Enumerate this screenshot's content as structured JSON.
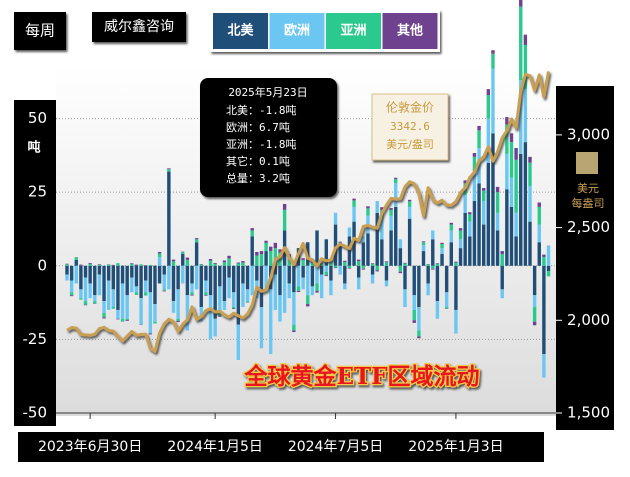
{
  "chart_data": {
    "type": "bar",
    "title": "全球黄金ETF区域流动",
    "period": "每周",
    "source": "威尔鑫咨询",
    "y_label": "吨",
    "y2_label": [
      "美元",
      "每盎司"
    ],
    "tooltip": {
      "title": "2025年5月23日",
      "lines": [
        "北美：-1.8吨",
        "欧洲：6.7吨",
        "亚洲：-1.8吨",
        "其它：0.1吨",
        "总量：3.2吨"
      ]
    },
    "price_box": {
      "title": "伦敦金价",
      "value": 3342.6,
      "unit": "美元/盎司"
    },
    "ylim": [
      -50,
      66.5
    ],
    "yticks": [
      -50,
      -25,
      0,
      25,
      50
    ],
    "y2lim": [
      1500,
      3350
    ],
    "y2ticks": [
      {
        "value": 1500,
        "label": "1,500"
      },
      {
        "value": 2000,
        "label": "2,000"
      },
      {
        "value": 2500,
        "label": "2,500"
      },
      {
        "value": 3000,
        "label": "3,000"
      }
    ],
    "grid": true,
    "categories": [
      null,
      null,
      null,
      null,
      null,
      "2023年6月30日",
      null,
      null,
      null,
      null,
      null,
      null,
      null,
      null,
      null,
      null,
      null,
      null,
      null,
      null,
      null,
      null,
      null,
      null,
      null,
      null,
      null,
      null,
      null,
      null,
      null,
      null,
      "2024年1月5日",
      null,
      null,
      null,
      null,
      null,
      null,
      null,
      null,
      null,
      null,
      null,
      null,
      null,
      null,
      null,
      null,
      null,
      null,
      null,
      null,
      null,
      null,
      null,
      null,
      null,
      "2024年7月5日",
      null,
      null,
      null,
      null,
      null,
      null,
      null,
      null,
      null,
      null,
      null,
      null,
      null,
      null,
      null,
      null,
      null,
      null,
      null,
      null,
      null,
      null,
      null,
      null,
      null,
      "2025年1月3日",
      null,
      null,
      null,
      null,
      null,
      null,
      null,
      null,
      null,
      null,
      null,
      null,
      null,
      null,
      null,
      null,
      null,
      null,
      null,
      null
    ],
    "series": [
      {
        "name": "北美",
        "color": "#1f4e79",
        "values": [
          -3,
          -5,
          2,
          -8,
          -4,
          -6,
          -10,
          -3,
          -12,
          -5,
          -8,
          -15,
          -6,
          -10,
          -4,
          -7,
          -11,
          -5,
          -9,
          -13,
          -6,
          -3,
          32,
          -12,
          -8,
          4,
          -10,
          -6,
          8,
          -14,
          -5,
          -10,
          -18,
          -7,
          -12,
          -4,
          -9,
          -20,
          -6,
          -8,
          10,
          -5,
          -14,
          5,
          -8,
          -3,
          -10,
          12,
          -6,
          -9,
          6,
          -4,
          8,
          -7,
          12,
          -3,
          9,
          -5,
          14,
          7,
          -6,
          10,
          15,
          -4,
          8,
          11,
          -3,
          18,
          9,
          -5,
          12,
          20,
          6,
          -8,
          16,
          -10,
          -14,
          5,
          -6,
          9,
          -12,
          4,
          -9,
          8,
          -15,
          6,
          18,
          10,
          22,
          28,
          14,
          35,
          45,
          12,
          -8,
          26,
          20,
          10,
          38,
          42,
          15,
          -10,
          8,
          -30,
          -1.8
        ]
      },
      {
        "name": "欧洲",
        "color": "#6cc6f2",
        "values": [
          -2,
          -4,
          -6,
          -3,
          -8,
          -5,
          -2,
          -7,
          -4,
          -10,
          -6,
          -3,
          -12,
          -8,
          -5,
          -2,
          -9,
          -4,
          -14,
          -6,
          3,
          -5,
          -8,
          -4,
          -10,
          -6,
          -12,
          -3,
          -8,
          -5,
          -4,
          -15,
          -6,
          -9,
          -3,
          -7,
          -5,
          -12,
          -8,
          -4,
          -10,
          -6,
          -14,
          -8,
          -22,
          -12,
          -9,
          -16,
          -5,
          -11,
          -7,
          -4,
          -10,
          -3,
          -6,
          -8,
          -2,
          -5,
          4,
          -3,
          -2,
          3,
          5,
          -4,
          2,
          6,
          -3,
          4,
          7,
          -2,
          5,
          8,
          3,
          -6,
          4,
          -5,
          -8,
          2,
          -4,
          3,
          -6,
          2,
          -5,
          4,
          -8,
          3,
          6,
          5,
          10,
          12,
          8,
          15,
          22,
          6,
          -3,
          12,
          10,
          8,
          25,
          18,
          12,
          -4,
          6,
          -8,
          6.7
        ]
      },
      {
        "name": "亚洲",
        "color": "#2cc98f",
        "values": [
          0.5,
          -1,
          0.8,
          -0.5,
          -1.2,
          0.6,
          -0.8,
          0.3,
          -1.5,
          0.4,
          -0.6,
          0.9,
          -1,
          -0.4,
          0.7,
          -0.9,
          0.5,
          -1.1,
          0.3,
          -0.6,
          1.2,
          -0.5,
          0.8,
          1.5,
          -0.7,
          0.6,
          2,
          -0.8,
          1,
          0.5,
          -1,
          1.8,
          0.6,
          -0.9,
          1.2,
          2.5,
          -0.5,
          0.8,
          1.1,
          -0.4,
          2,
          3.5,
          4,
          2.8,
          5,
          6,
          4.5,
          7,
          3,
          -2,
          -1.5,
          2,
          -3,
          1,
          -2.5,
          0.8,
          -1.2,
          1.5,
          -0.6,
          0.9,
          1.3,
          -0.8,
          2.2,
          1.6,
          -1,
          2.5,
          0.7,
          -1.5,
          3,
          1.2,
          2,
          1.5,
          -2,
          0.8,
          1.9,
          -3.5,
          -2,
          1,
          0.5,
          -1,
          0.7,
          1.4,
          -0.5,
          2,
          1.1,
          3,
          4,
          2.5,
          5,
          6,
          3.5,
          8,
          5,
          7,
          4,
          10,
          12,
          18,
          25,
          15,
          8,
          -5,
          6,
          3,
          -1.8
        ]
      },
      {
        "name": "其他",
        "color": "#6f428f",
        "values": [
          0.2,
          -0.3,
          0.1,
          0.4,
          -0.2,
          0.3,
          -0.1,
          0.2,
          -0.4,
          0.1,
          0.3,
          -0.2,
          0.1,
          -0.3,
          0.2,
          0.4,
          -0.1,
          0.2,
          -0.3,
          0.1,
          0.5,
          -0.2,
          0.3,
          0.6,
          -0.4,
          0.2,
          0.8,
          -0.3,
          0.4,
          0.1,
          -0.2,
          0.5,
          0.3,
          -0.4,
          0.6,
          0.9,
          -0.2,
          0.3,
          0.5,
          -0.1,
          0.8,
          1.2,
          1,
          0.7,
          1.5,
          1.8,
          1.1,
          2,
          0.9,
          -0.5,
          -0.4,
          0.6,
          -0.8,
          0.3,
          -0.6,
          0.2,
          -0.3,
          0.5,
          -0.2,
          0.3,
          0.4,
          -0.2,
          0.6,
          0.5,
          -0.3,
          0.7,
          0.2,
          -0.4,
          0.9,
          0.3,
          0.6,
          0.4,
          -0.5,
          0.2,
          0.5,
          -0.9,
          -0.6,
          0.3,
          0.1,
          -0.3,
          0.2,
          0.4,
          -0.1,
          0.6,
          0.3,
          0.8,
          1,
          0.7,
          1.3,
          1.5,
          0.9,
          2,
          1.2,
          1.8,
          1,
          2.5,
          3,
          4,
          5,
          3.5,
          2,
          -1.2,
          1.5,
          0.8,
          0.1
        ]
      }
    ],
    "line": {
      "color": "#c9a052",
      "axis": "y2",
      "values": [
        1946,
        1961,
        1958,
        1924,
        1921,
        1919,
        1925,
        1955,
        1962,
        1945,
        1942,
        1914,
        1889,
        1915,
        1940,
        1919,
        1924,
        1925,
        1848,
        1832,
        1932,
        1981,
        2006,
        1992,
        1940,
        1980,
        2002,
        2072,
        2005,
        2020,
        2053,
        2063,
        2045,
        2049,
        2029,
        2018,
        2039,
        2024,
        2013,
        2035,
        2083,
        2179,
        2156,
        2165,
        2230,
        2329,
        2344,
        2392,
        2337,
        2301,
        2360,
        2415,
        2334,
        2327,
        2293,
        2332,
        2321,
        2326,
        2391,
        2411,
        2400,
        2387,
        2443,
        2431,
        2507,
        2512,
        2503,
        2497,
        2577,
        2622,
        2658,
        2653,
        2656,
        2721,
        2747,
        2736,
        2685,
        2563,
        2715,
        2650,
        2633,
        2648,
        2622,
        2621,
        2640,
        2690,
        2715,
        2770,
        2798,
        2861,
        2882,
        2936,
        2858,
        2910,
        2984,
        3022,
        3086,
        3037,
        3237,
        3327,
        3319,
        3240,
        3324,
        3205,
        3342.6
      ]
    }
  }
}
